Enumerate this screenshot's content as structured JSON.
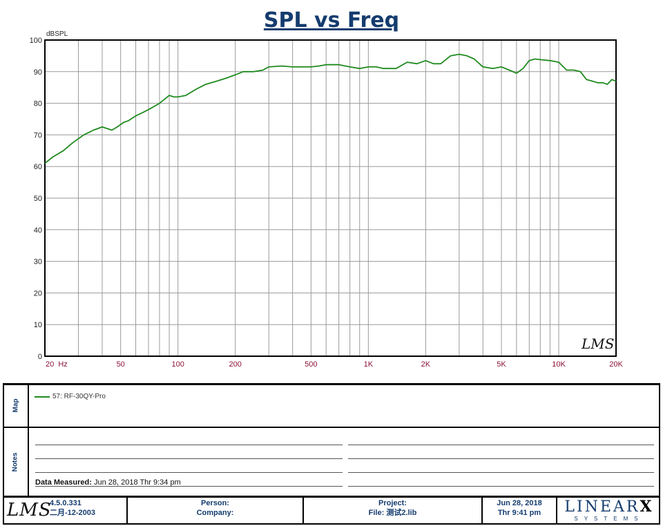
{
  "chart_data": {
    "type": "line",
    "title": "SPL vs Freq",
    "ylabel": "dBSPL",
    "xlabel": "",
    "x_scale": "log",
    "xlim": [
      20,
      20000
    ],
    "ylim": [
      0,
      100
    ],
    "grid": true,
    "y_tick_labels": [
      "0",
      "10",
      "20",
      "30",
      "40",
      "50",
      "60",
      "70",
      "80",
      "90",
      "100"
    ],
    "x_tick_labels": [
      {
        "value": 20,
        "label": "20  Hz"
      },
      {
        "value": 50,
        "label": "50"
      },
      {
        "value": 100,
        "label": "100"
      },
      {
        "value": 200,
        "label": "200"
      },
      {
        "value": 500,
        "label": "500"
      },
      {
        "value": 1000,
        "label": "1K"
      },
      {
        "value": 2000,
        "label": "2K"
      },
      {
        "value": 5000,
        "label": "5K"
      },
      {
        "value": 10000,
        "label": "10K"
      },
      {
        "value": 20000,
        "label": "20K"
      }
    ],
    "series": [
      {
        "name": "57: RF-30QY-Pro",
        "color": "#1e8a1e",
        "x": [
          20,
          22,
          25,
          28,
          32,
          36,
          40,
          45,
          48,
          52,
          55,
          60,
          65,
          70,
          75,
          80,
          90,
          95,
          100,
          110,
          125,
          140,
          160,
          180,
          200,
          220,
          250,
          280,
          300,
          350,
          400,
          450,
          500,
          550,
          600,
          700,
          800,
          900,
          1000,
          1100,
          1200,
          1400,
          1600,
          1800,
          2000,
          2200,
          2400,
          2700,
          3000,
          3300,
          3600,
          4000,
          4500,
          5000,
          5500,
          6000,
          6500,
          7000,
          7500,
          8000,
          9000,
          10000,
          11000,
          12000,
          13000,
          14000,
          15000,
          16000,
          17000,
          18000,
          19000,
          20000
        ],
        "y": [
          61,
          63,
          65,
          67.5,
          70,
          71.5,
          72.5,
          71.5,
          72.5,
          74,
          74.5,
          76,
          77,
          78,
          79,
          80,
          82.5,
          82,
          82,
          82.5,
          84.5,
          86,
          87,
          88,
          89,
          90,
          90,
          90.5,
          91.5,
          91.8,
          91.5,
          91.5,
          91.5,
          91.8,
          92.2,
          92.2,
          91.5,
          91,
          91.5,
          91.5,
          91,
          91,
          93,
          92.5,
          93.5,
          92.5,
          92.5,
          95,
          95.5,
          95,
          94,
          91.5,
          91,
          91.5,
          90.5,
          89.5,
          91,
          93.5,
          94,
          93.8,
          93.5,
          93,
          90.5,
          90.5,
          90,
          87.5,
          87,
          86.5,
          86.5,
          86,
          87.5,
          87
        ]
      }
    ]
  },
  "map": {
    "label": "Map",
    "legend_text": "57: RF-30QY-Pro"
  },
  "notes": {
    "label": "Notes",
    "data_measured_label": "Data Measured:",
    "data_measured_value": "Jun 28, 2018  Thr  9:34 pm"
  },
  "plot_logo": "LMS",
  "footer": {
    "logo": "LMS",
    "version": "4.5.0.331",
    "version_date": "二月-12-2003",
    "person_label": "Person:",
    "company_label": "Company:",
    "project_label": "Project:",
    "file_label": "File: 测试2.lib",
    "date": "Jun 28, 2018",
    "time": "Thr  9:41 pm",
    "linearx_main": "LINEAR",
    "linearx_x": "X",
    "linearx_sub": "SYSTEMS"
  }
}
